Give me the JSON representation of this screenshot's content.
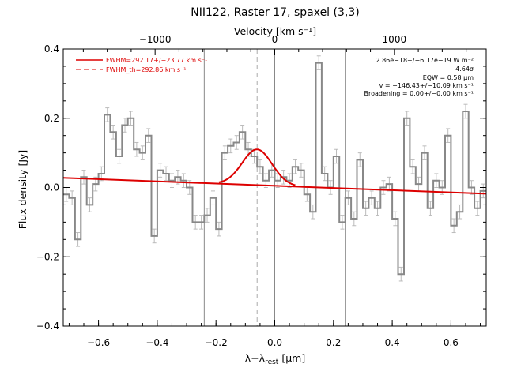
{
  "chart_data": {
    "type": "line",
    "title": "NII122, Raster 17, spaxel (3,3)",
    "xlabel": "λ−λrest [μm]",
    "xlabel_main": "λ−λ",
    "xlabel_sub": "rest",
    "xlabel_unit": " [μm]",
    "ylabel": "Flux density [Jy]",
    "top_axis_label": "Velocity [km s⁻¹]",
    "xlim": [
      -0.72,
      0.72
    ],
    "ylim": [
      -0.4,
      0.4
    ],
    "x_ticks": [
      -0.6,
      -0.4,
      -0.2,
      0.0,
      0.2,
      0.4,
      0.6
    ],
    "x_tick_labels": [
      "−0.6",
      "−0.4",
      "−0.2",
      "0.0",
      "0.2",
      "0.4",
      "0.6"
    ],
    "y_ticks": [
      -0.4,
      -0.2,
      0.0,
      0.2,
      0.4
    ],
    "y_tick_labels": [
      "−0.4",
      "−0.2",
      "0.0",
      "0.2",
      "0.4"
    ],
    "top_ticks": [
      -1000,
      0,
      1000
    ],
    "top_tick_labels": [
      "−1000",
      "0",
      "1000"
    ],
    "velocity_per_micron": 2455,
    "legend": {
      "placement": "top-left",
      "entries": [
        {
          "label": "FWHM=292.17+/−23.77 km s⁻¹",
          "style": "solid",
          "color": "#dd0000"
        },
        {
          "label": "FWHM_th=292.86 km s⁻¹",
          "style": "dashed",
          "color": "#dd0000"
        }
      ]
    },
    "annotations": [
      "2.86e−18+/−6.17e−19 W m⁻²",
      "4.64σ",
      "EQW = 0.58 μm",
      "v = −146.43+/−10.09 km s⁻¹",
      "Broadening = 0.00+/−0.00 km s⁻¹"
    ],
    "vertical_lines": [
      {
        "x": -0.24,
        "style": "solid",
        "color": "#888888"
      },
      {
        "x": 0.0,
        "style": "solid",
        "color": "#888888"
      },
      {
        "x": 0.24,
        "style": "solid",
        "color": "#888888"
      },
      {
        "x": -0.06,
        "style": "dashed",
        "color": "#aaaaaa"
      }
    ],
    "spectrum": {
      "name": "data",
      "color": "#888888",
      "x": [
        -0.71,
        -0.69,
        -0.67,
        -0.65,
        -0.63,
        -0.61,
        -0.59,
        -0.57,
        -0.55,
        -0.53,
        -0.51,
        -0.49,
        -0.47,
        -0.45,
        -0.43,
        -0.41,
        -0.39,
        -0.37,
        -0.35,
        -0.33,
        -0.31,
        -0.29,
        -0.27,
        -0.25,
        -0.23,
        -0.21,
        -0.19,
        -0.17,
        -0.15,
        -0.13,
        -0.11,
        -0.09,
        -0.07,
        -0.05,
        -0.03,
        -0.01,
        0.01,
        0.03,
        0.05,
        0.07,
        0.09,
        0.11,
        0.13,
        0.15,
        0.17,
        0.19,
        0.21,
        0.23,
        0.25,
        0.27,
        0.29,
        0.31,
        0.33,
        0.35,
        0.37,
        0.39,
        0.41,
        0.43,
        0.45,
        0.47,
        0.49,
        0.51,
        0.53,
        0.55,
        0.57,
        0.59,
        0.61,
        0.63,
        0.65,
        0.67,
        0.69,
        0.71
      ],
      "y": [
        -0.02,
        -0.03,
        -0.15,
        0.03,
        -0.05,
        0.01,
        0.04,
        0.21,
        0.16,
        0.09,
        0.18,
        0.2,
        0.11,
        0.1,
        0.15,
        -0.14,
        0.05,
        0.04,
        0.02,
        0.03,
        0.02,
        0.0,
        -0.1,
        -0.1,
        -0.08,
        -0.03,
        -0.12,
        0.1,
        0.12,
        0.13,
        0.16,
        0.11,
        0.09,
        0.06,
        0.02,
        0.05,
        0.02,
        0.03,
        0.02,
        0.06,
        0.05,
        -0.02,
        -0.07,
        0.36,
        0.04,
        0.0,
        0.09,
        -0.1,
        -0.03,
        -0.09,
        0.08,
        -0.06,
        -0.03,
        -0.06,
        0.0,
        0.01,
        -0.09,
        -0.25,
        0.2,
        0.06,
        0.01,
        0.1,
        -0.06,
        0.02,
        0.0,
        0.15,
        -0.11,
        -0.07,
        0.22,
        0.0,
        -0.06,
        -0.01
      ],
      "error": 0.02
    },
    "continuum": {
      "name": "continuum",
      "color": "#dd0000",
      "x": [
        -0.72,
        0.72
      ],
      "y": [
        0.028,
        -0.018
      ]
    },
    "gaussian_fit": {
      "name": "fit",
      "color": "#dd0000",
      "center": -0.06,
      "amplitude": 0.103,
      "fwhm": 0.12,
      "x_range": [
        -0.19,
        0.07
      ]
    }
  }
}
